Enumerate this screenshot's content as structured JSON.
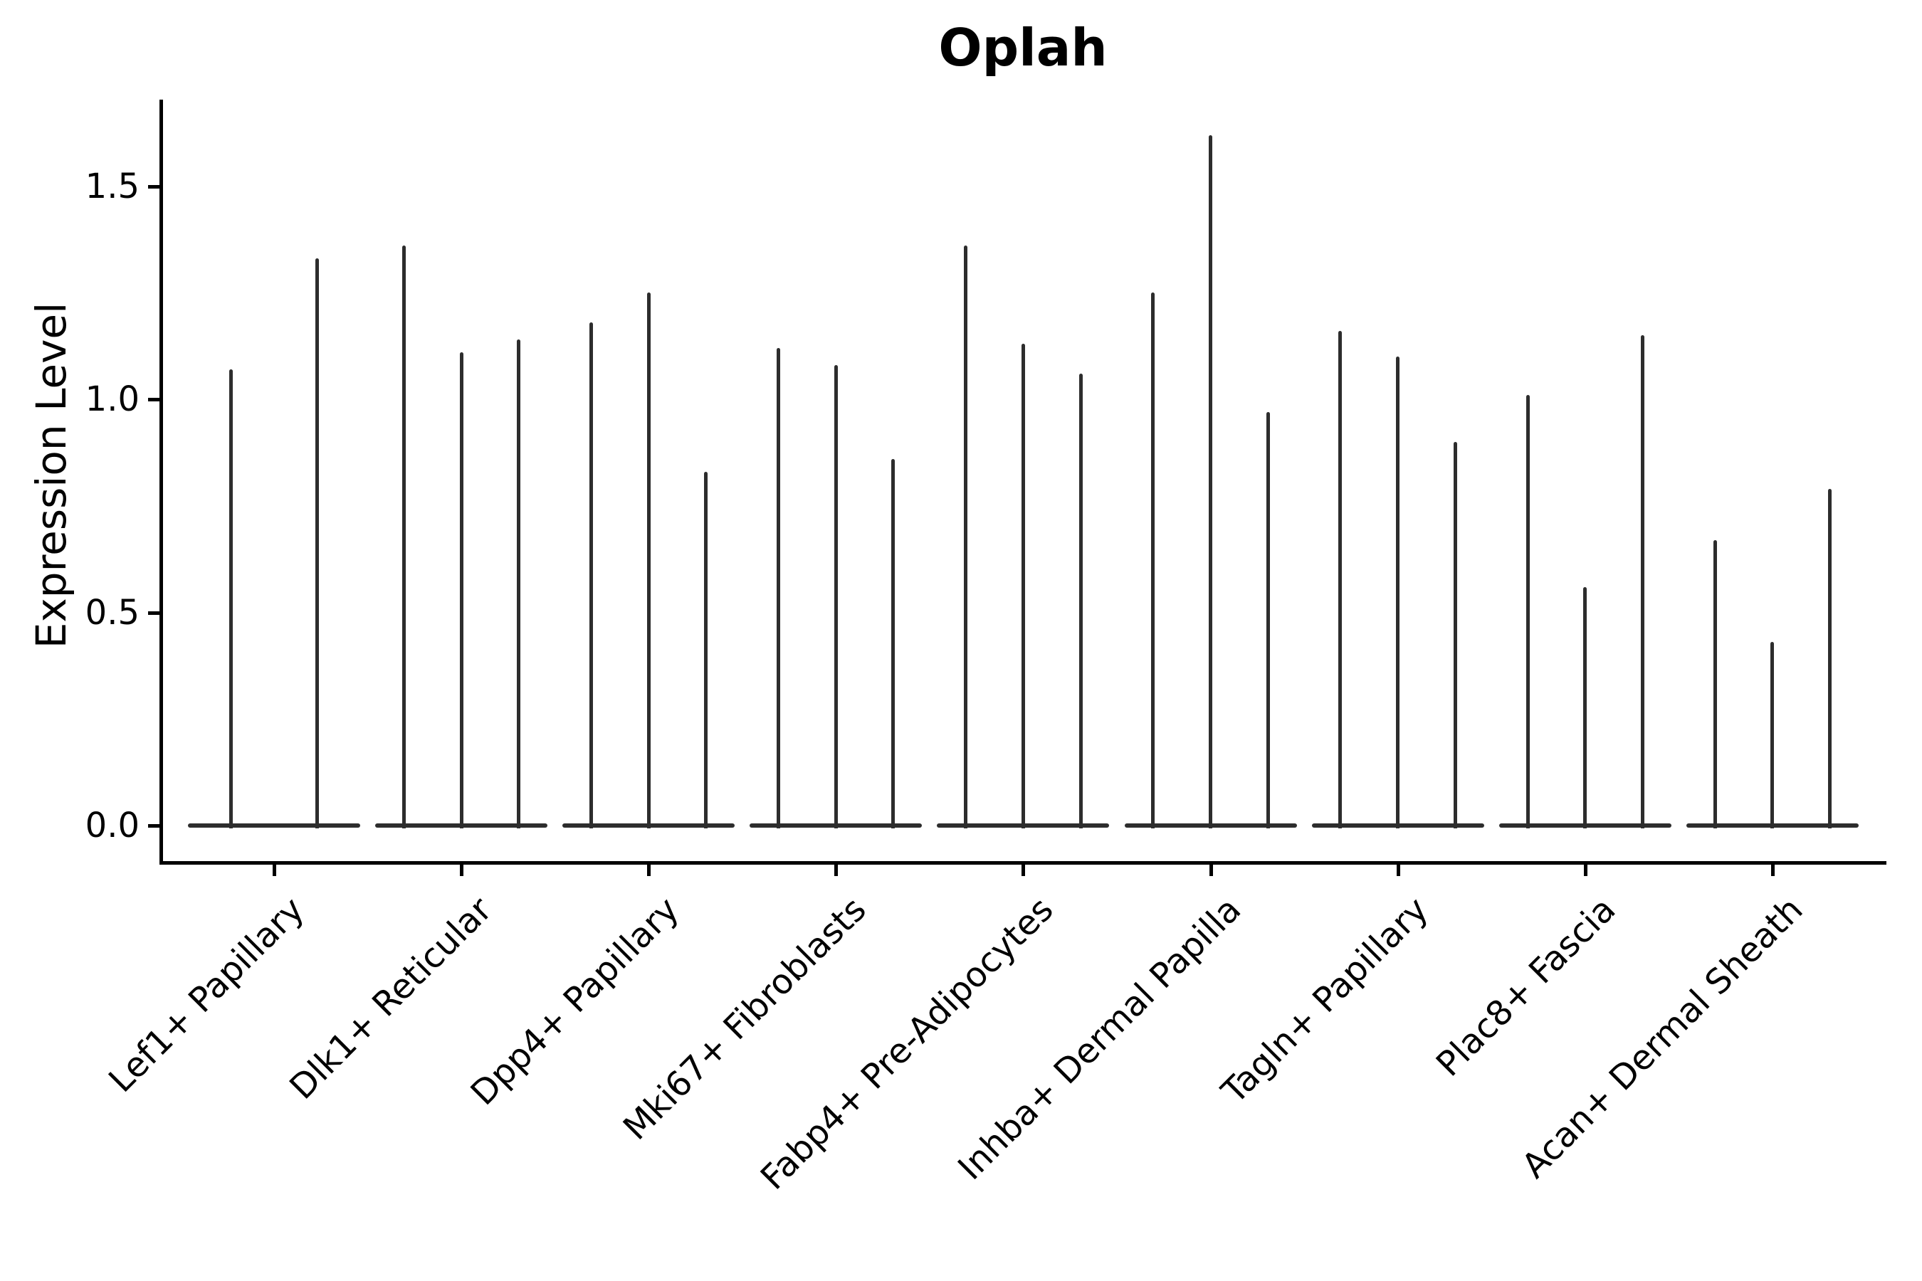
{
  "figure": {
    "title": "Oplah"
  },
  "chart_data": {
    "type": "violin",
    "title": "Oplah",
    "ylabel": "Expression Level",
    "xlabel": "",
    "ylim": [
      -0.08,
      1.7
    ],
    "yticks": [
      0.0,
      0.5,
      1.0,
      1.5
    ],
    "ytick_labels": [
      "0.0",
      "0.5",
      "1.0",
      "1.5"
    ],
    "grid": false,
    "legend": "none",
    "x_tick_rotation_deg": 45,
    "style_note": "needle-thin dark-gray violins on white; mass concentrated at 0 with thin tails up to each max; only left and bottom spines",
    "categories": [
      "Lef1+ Papillary",
      "Dlk1+ Reticular",
      "Dpp4+ Papillary",
      "Mki67+ Fibroblasts",
      "Fabp4+ Pre-Adipocytes",
      "Inhba+ Dermal Papilla",
      "Tagln+ Papillary",
      "Plac8+ Fascia",
      "Acan+ Dermal Sheath"
    ],
    "groups": [
      {
        "label": "Lef1+ Papillary",
        "violin_max": [
          1.07,
          1.33
        ]
      },
      {
        "label": "Dlk1+ Reticular",
        "violin_max": [
          1.36,
          1.11,
          1.14
        ]
      },
      {
        "label": "Dpp4+ Papillary",
        "violin_max": [
          1.18,
          1.25,
          0.83
        ]
      },
      {
        "label": "Mki67+ Fibroblasts",
        "violin_max": [
          1.12,
          1.08,
          0.86
        ]
      },
      {
        "label": "Fabp4+ Pre-Adipocytes",
        "violin_max": [
          1.36,
          1.13,
          1.06
        ]
      },
      {
        "label": "Inhba+ Dermal Papilla",
        "violin_max": [
          1.25,
          1.62,
          0.97
        ]
      },
      {
        "label": "Tagln+ Papillary",
        "violin_max": [
          1.16,
          1.1,
          0.9
        ]
      },
      {
        "label": "Plac8+ Fascia",
        "violin_max": [
          1.01,
          0.56,
          1.15
        ]
      },
      {
        "label": "Acan+ Dermal Sheath",
        "violin_max": [
          0.67,
          0.43,
          0.79
        ]
      }
    ]
  },
  "colors": {
    "background": "#ffffff",
    "violin": "#2d2d2d",
    "axis": "#000000",
    "text": "#000000"
  }
}
